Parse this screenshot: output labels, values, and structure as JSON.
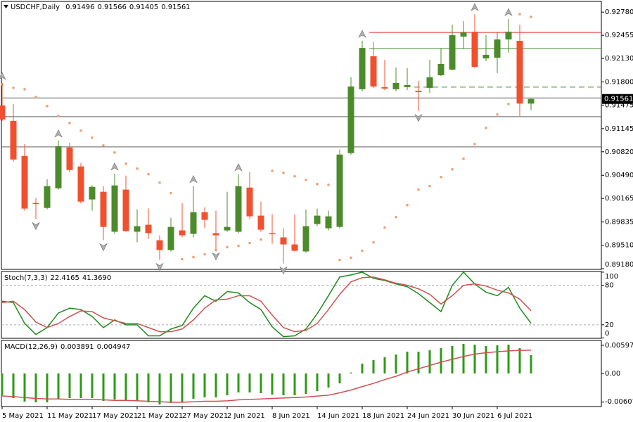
{
  "chart_data": [
    {
      "type": "candlestick",
      "title": "USDCHF,Daily",
      "categories": [
        "5 May 2021",
        null,
        null,
        null,
        "11 May 2021",
        null,
        null,
        null,
        "17 May 2021",
        null,
        null,
        null,
        "21 May 2021",
        null,
        null,
        null,
        "27 May 2021",
        null,
        null,
        null,
        "2 Jun 2021",
        null,
        null,
        null,
        "8 Jun 2021",
        null,
        null,
        null,
        "14 Jun 2021",
        null,
        null,
        null,
        "18 Jun 2021",
        null,
        null,
        null,
        "24 Jun 2021",
        null,
        null,
        null,
        "30 Jun 2021",
        null,
        null,
        null,
        "6 Jul 2021",
        null,
        null,
        null
      ],
      "open": [
        0.9147,
        0.91254,
        0.90761,
        0.90101,
        0.90032,
        0.90308,
        0.9088,
        0.90614,
        0.90151,
        0.90259,
        0.89698,
        0.90289,
        0.89698,
        0.89796,
        0.89579,
        0.89441,
        0.89717,
        0.89668,
        0.89973,
        0.89678,
        0.89717,
        0.89698,
        0.90318,
        0.89924,
        0.89678,
        0.89619,
        0.8952,
        0.89422,
        0.89806,
        0.89747,
        0.89766,
        0.90801,
        0.91697,
        0.9216,
        0.91727,
        0.91697,
        0.91727,
        0.91677,
        0.91717,
        0.91894,
        0.91973,
        0.92436,
        0.92505,
        0.9213,
        0.9214,
        0.92396,
        0.92377,
        0.91496
      ],
      "high": [
        0.91786,
        0.9149,
        0.90929,
        0.90171,
        0.90436,
        0.90978,
        0.90948,
        0.90663,
        0.90348,
        0.90338,
        0.90515,
        0.90486,
        0.90013,
        0.90023,
        0.89648,
        0.89894,
        0.90101,
        0.90338,
        0.90042,
        0.89993,
        0.90259,
        0.90505,
        0.90535,
        0.90121,
        0.89944,
        0.89747,
        0.89944,
        0.90013,
        0.90023,
        0.89993,
        0.9085,
        0.91865,
        0.92377,
        0.92357,
        0.92111,
        0.92002,
        0.91993,
        0.91815,
        0.92111,
        0.92278,
        0.92603,
        0.92652,
        0.92751,
        0.92456,
        0.92505,
        0.92682,
        0.92603,
        0.91566
      ],
      "low": [
        0.91254,
        0.90683,
        0.89993,
        0.89875,
        0.90013,
        0.90289,
        0.90535,
        0.90092,
        0.89993,
        0.89579,
        0.89668,
        0.89698,
        0.8955,
        0.89599,
        0.89303,
        0.89422,
        0.89619,
        0.89619,
        0.89747,
        0.89451,
        0.89698,
        0.89678,
        0.89875,
        0.89698,
        0.8953,
        0.89254,
        0.89422,
        0.89402,
        0.89776,
        0.89717,
        0.89747,
        0.90781,
        0.91668,
        0.91717,
        0.91687,
        0.91668,
        0.91687,
        0.91392,
        0.91648,
        0.91884,
        0.91963,
        0.92259,
        0.91993,
        0.92091,
        0.91924,
        0.92209,
        0.91323,
        0.91405
      ],
      "close": [
        0.91273,
        0.90712,
        0.90023,
        0.90092,
        0.90338,
        0.90899,
        0.90564,
        0.90121,
        0.90328,
        0.89766,
        0.90348,
        0.89707,
        0.89776,
        0.89678,
        0.89441,
        0.89766,
        0.89648,
        0.89973,
        0.89865,
        0.89648,
        0.89766,
        0.90338,
        0.89914,
        0.89727,
        0.89668,
        0.8952,
        0.89431,
        0.89776,
        0.89924,
        0.89914,
        0.90781,
        0.91736,
        0.92278,
        0.91736,
        0.91707,
        0.91786,
        0.91756,
        0.91658,
        0.91865,
        0.92052,
        0.92456,
        0.92495,
        0.92012,
        0.9218,
        0.92396,
        0.92505,
        0.91496,
        0.91561
      ],
      "up_color": "#4c8b2b",
      "down_color": "#f1502f",
      "ylim": [
        0.8917,
        0.9293
      ],
      "yticks": [
        {
          "value": 0.9278,
          "label": "0.92780"
        },
        {
          "value": 0.92455,
          "label": "0.92455"
        },
        {
          "value": 0.9213,
          "label": "0.92130"
        },
        {
          "value": 0.918,
          "label": "0.91800"
        },
        {
          "value": 0.91475,
          "label": "0.91475"
        },
        {
          "value": 0.91145,
          "label": "0.91145"
        },
        {
          "value": 0.9082,
          "label": "0.90820"
        },
        {
          "value": 0.9049,
          "label": "0.90490"
        },
        {
          "value": 0.90165,
          "label": "0.90165"
        },
        {
          "value": 0.89835,
          "label": "0.89835"
        },
        {
          "value": 0.8951,
          "label": "0.89510"
        },
        {
          "value": 0.8918,
          "label": "0.89180"
        }
      ],
      "hlines": [
        {
          "value": 0.91575,
          "color": "#606060"
        },
        {
          "value": 0.91313,
          "color": "#606060"
        },
        {
          "value": 0.90889,
          "color": "#606060"
        },
        {
          "value": 0.92495,
          "color": "#e8302a",
          "start": 33
        },
        {
          "value": 0.92268,
          "color": "#3f8a2a",
          "start": 33
        },
        {
          "value": 0.91727,
          "color": "#3f8a2a",
          "dash": true,
          "start": 37
        }
      ],
      "sar": {
        "color": "#f0a070",
        "values": [
          0.91766,
          0.91717,
          0.91697,
          0.91589,
          0.91461,
          0.91323,
          0.91224,
          0.91116,
          0.91017,
          0.90909,
          0.9081,
          0.90653,
          0.90584,
          0.90505,
          0.90387,
          0.90239,
          0.89313,
          0.89343,
          0.89382,
          0.89441,
          0.89481,
          0.895,
          0.8954,
          0.89589,
          0.90554,
          0.90525,
          0.90476,
          0.90426,
          0.90367,
          0.90358,
          0.89303,
          0.89333,
          0.89431,
          0.8955,
          0.89757,
          0.89904,
          0.90072,
          0.90289,
          0.90338,
          0.90466,
          0.90574,
          0.90722,
          0.90929,
          0.91155,
          0.91343,
          0.9149,
          0.92751,
          0.92712
        ]
      },
      "fractals_up": [
        0,
        5,
        10,
        17,
        21,
        32,
        42,
        45
      ],
      "fractals_down": [
        3,
        9,
        14,
        19,
        25,
        37
      ]
    },
    {
      "type": "line",
      "title": "Stoch(7,3,3)",
      "ylim": [
        -0.5,
        101
      ],
      "yticks": [
        100,
        80,
        20,
        0
      ],
      "series": [
        {
          "color": "#1f8a1f",
          "values": [
            55.8,
            53.7,
            22.1,
            5.3,
            15.8,
            37.9,
            45.3,
            43.2,
            32.6,
            15.8,
            27.4,
            20,
            20,
            3.2,
            3.2,
            13.7,
            18.9,
            45.3,
            64.2,
            55.8,
            70.5,
            68.4,
            53.7,
            43.2,
            16.8,
            2.1,
            3.2,
            13.7,
            36.8,
            64.2,
            92.6,
            95.8,
            100,
            90.5,
            87.4,
            82.1,
            77.9,
            67.4,
            53.7,
            40,
            80,
            100,
            82.1,
            69.5,
            64.2,
            76.8,
            45.3,
            22.4165
          ]
        },
        {
          "color": "#d05050",
          "values": [
            53.7,
            55.8,
            43.2,
            24.2,
            15.8,
            22.1,
            32.6,
            41.1,
            40,
            30.5,
            26.3,
            22.1,
            22.1,
            15.8,
            9.5,
            9.5,
            13.7,
            27.4,
            45.3,
            57.9,
            58.9,
            64.2,
            64.2,
            55.8,
            34.7,
            15.8,
            9.5,
            11.6,
            22.1,
            43.2,
            66.3,
            85.3,
            91.6,
            92.6,
            88.4,
            83.2,
            80,
            74.7,
            66.3,
            51.6,
            64.2,
            80,
            82.1,
            78.9,
            72.6,
            68.4,
            58.9,
            41.369
          ],
          "value_labels": [
            null,
            null,
            null,
            null,
            null,
            null,
            null,
            null,
            null,
            null,
            null,
            null,
            null,
            null,
            null,
            null,
            null,
            null,
            null,
            null,
            null,
            null,
            null,
            null,
            null,
            null,
            null,
            null,
            null,
            null,
            null,
            null,
            null,
            null,
            null,
            null,
            null,
            null,
            null,
            null,
            null,
            null,
            null,
            null,
            null,
            null,
            null,
            "41.3690"
          ]
        }
      ]
    },
    {
      "type": "bar",
      "title": "MACD(12,26,9)",
      "ylim": [
        -0.00701,
        0.00701
      ],
      "yticks": [
        0.005971,
        {
          "value": 0,
          "label": "0.00"
        },
        -0.006078
      ],
      "series": [
        {
          "type": "bar",
          "color": "#2e9a16",
          "values": [
            -0.00463,
            -0.00522,
            -0.00597,
            -0.00612,
            -0.00612,
            -0.00552,
            -0.00522,
            -0.00522,
            -0.00522,
            -0.00582,
            -0.00552,
            -0.00582,
            -0.00582,
            -0.00612,
            -0.00657,
            -0.00627,
            -0.00612,
            -0.00537,
            -0.00507,
            -0.00507,
            -0.00463,
            -0.00403,
            -0.00403,
            -0.00418,
            -0.00448,
            -0.00463,
            -0.00463,
            -0.00433,
            -0.00373,
            -0.00299,
            -0.0021,
            0.0002,
            0.00209,
            0.00284,
            0.00343,
            0.00403,
            0.00463,
            0.00463,
            0.00493,
            0.00537,
            0.00582,
            0.00627,
            0.00612,
            0.00582,
            0.00597,
            0.00612,
            0.00537,
            0.003891
          ]
        },
        {
          "type": "line",
          "color": "#d05050",
          "values": [
            -0.00478,
            -0.0049,
            -0.0051,
            -0.0053,
            -0.0054,
            -0.0054,
            -0.0055,
            -0.0055,
            -0.0055,
            -0.0056,
            -0.0057,
            -0.0057,
            -0.0058,
            -0.0059,
            -0.006,
            -0.0061,
            -0.0061,
            -0.006,
            -0.0059,
            -0.0059,
            -0.0058,
            -0.0056,
            -0.0055,
            -0.0054,
            -0.0053,
            -0.0052,
            -0.0051,
            -0.005,
            -0.0048,
            -0.0046,
            -0.0041,
            -0.0035,
            -0.0028,
            -0.0021,
            -0.0013,
            -0.0006,
            0.0003,
            0.001,
            0.0017,
            0.0024,
            0.003,
            0.0036,
            0.0041,
            0.0044,
            0.0046,
            0.0048,
            0.0049,
            0.004947
          ]
        }
      ]
    }
  ]
}
